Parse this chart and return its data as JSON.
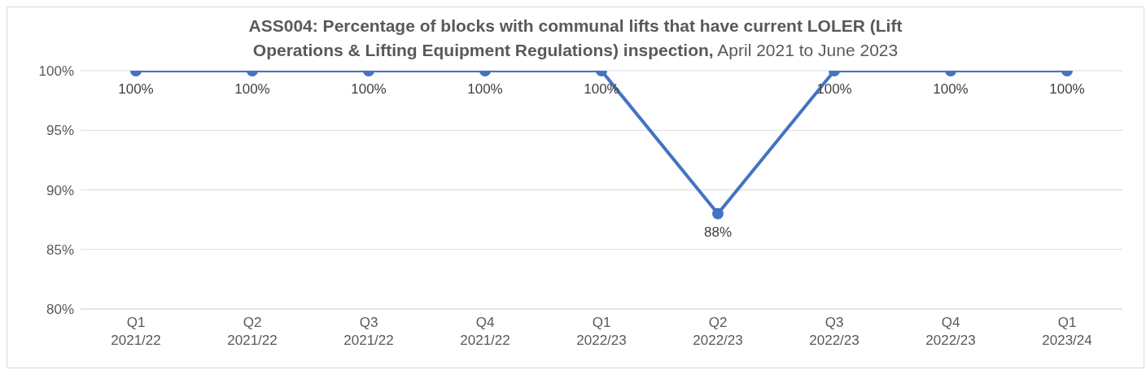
{
  "chart_data": {
    "type": "line",
    "title": "ASS004: Percentage of blocks with communal lifts that have current LOLER (Lift Operations & Lifting Equipment Regulations) inspection,",
    "subtitle": "April 2021 to June 2023",
    "categories": [
      "Q1 2021/22",
      "Q2 2021/22",
      "Q3 2021/22",
      "Q4 2021/22",
      "Q1 2022/23",
      "Q2 2022/23",
      "Q3 2022/23",
      "Q4 2022/23",
      "Q1 2023/24"
    ],
    "series": [
      {
        "color": "#4472c4",
        "values": [
          100,
          100,
          100,
          100,
          100,
          88,
          100,
          100,
          100
        ]
      }
    ],
    "value_labels": [
      "100%",
      "100%",
      "100%",
      "100%",
      "100%",
      "88%",
      "100%",
      "100%",
      "100%"
    ],
    "ylim": [
      80,
      100
    ],
    "yticks": [
      {
        "value": 80,
        "label": "80%"
      },
      {
        "value": 85,
        "label": "85%"
      },
      {
        "value": 90,
        "label": "90%"
      },
      {
        "value": 95,
        "label": "95%"
      },
      {
        "value": 100,
        "label": "100%"
      }
    ],
    "grid": "y",
    "legend": false,
    "marker": "circle",
    "line_style": "solid"
  }
}
